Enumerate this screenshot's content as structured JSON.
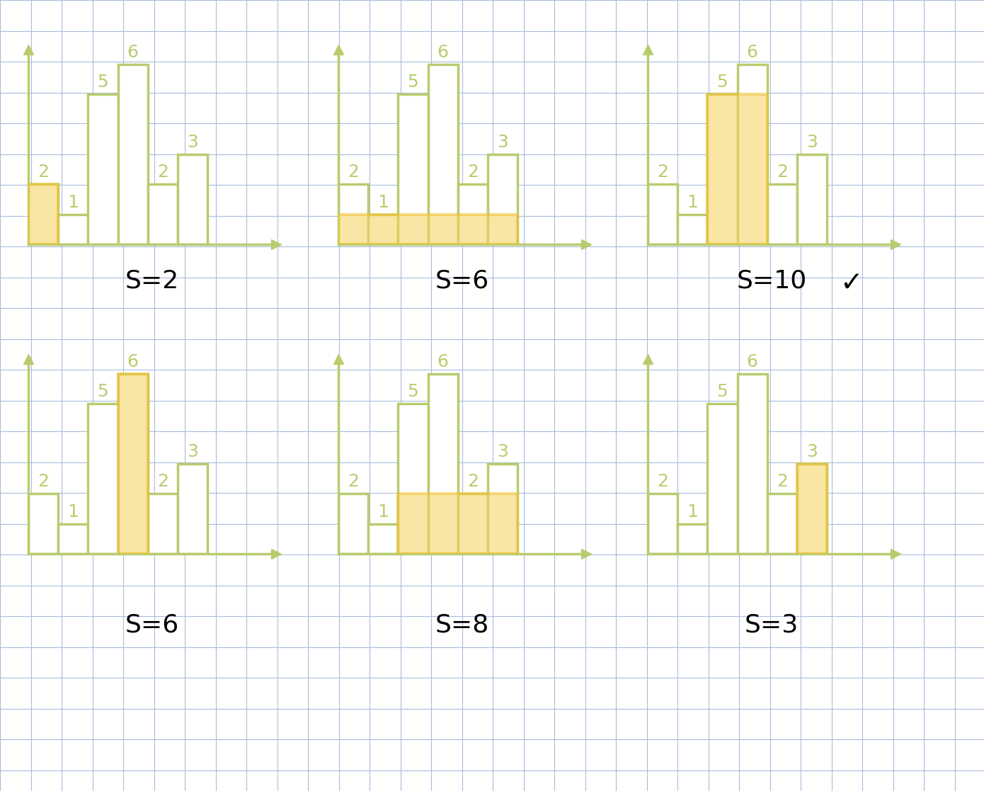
{
  "chart_data": [
    {
      "type": "bar",
      "categories": [
        null,
        null,
        null,
        null,
        null,
        null
      ],
      "values": [
        2,
        1,
        5,
        6,
        2,
        3
      ],
      "x_label": "S=2",
      "highlight": {
        "start": 0,
        "end": 0,
        "height": 2
      },
      "xlim": [
        -0.5,
        7.8
      ],
      "ylim": [
        0,
        6.5
      ],
      "yticks": [],
      "tick_labels": false,
      "data_labels": true,
      "color": "#b8cc6e"
    },
    {
      "type": "bar",
      "categories": [
        null,
        null,
        null,
        null,
        null,
        null
      ],
      "values": [
        2,
        1,
        5,
        6,
        2,
        3
      ],
      "x_label": "S=6",
      "highlight": {
        "start": 0,
        "end": 5,
        "height": 1
      },
      "xlim": [
        -0.5,
        7.8
      ],
      "ylim": [
        0,
        6.5
      ],
      "yticks": [],
      "tick_labels": false,
      "data_labels": true,
      "color": "#b8cc6e"
    },
    {
      "type": "bar",
      "categories": [
        null,
        null,
        null,
        null,
        null,
        null
      ],
      "values": [
        2,
        1,
        5,
        6,
        2,
        3
      ],
      "x_label": "S=10",
      "annotation": "✓",
      "highlight": {
        "start": 2,
        "end": 3,
        "height": 5
      },
      "xlim": [
        -0.5,
        7.8
      ],
      "ylim": [
        0,
        6.5
      ],
      "yticks": [],
      "tick_labels": false,
      "data_labels": true,
      "color": "#b8cc6e"
    },
    {
      "type": "bar",
      "categories": [
        null,
        null,
        null,
        null,
        null,
        null
      ],
      "values": [
        2,
        1,
        5,
        6,
        2,
        3
      ],
      "x_label": "S=6",
      "highlight": {
        "start": 3,
        "end": 3,
        "height": 6
      },
      "xlim": [
        -0.5,
        7.8
      ],
      "ylim": [
        0,
        6.5
      ],
      "yticks": [],
      "tick_labels": false,
      "data_labels": true,
      "color": "#b8cc6e"
    },
    {
      "type": "bar",
      "categories": [
        null,
        null,
        null,
        null,
        null,
        null
      ],
      "values": [
        2,
        1,
        5,
        6,
        2,
        3
      ],
      "x_label": "S=8",
      "highlight": {
        "start": 2,
        "end": 5,
        "height": 2
      },
      "xlim": [
        -0.5,
        7.8
      ],
      "ylim": [
        0,
        6.5
      ],
      "yticks": [],
      "tick_labels": false,
      "data_labels": true,
      "color": "#b8cc6e"
    },
    {
      "type": "bar",
      "categories": [
        null,
        null,
        null,
        null,
        null,
        null
      ],
      "values": [
        2,
        1,
        5,
        6,
        2,
        3
      ],
      "x_label": "S=3",
      "highlight": {
        "start": 5,
        "end": 5,
        "height": 3
      },
      "xlim": [
        -0.5,
        7.8
      ],
      "ylim": [
        0,
        6.5
      ],
      "yticks": [],
      "tick_labels": false,
      "data_labels": true,
      "color": "#b8cc6e"
    }
  ]
}
